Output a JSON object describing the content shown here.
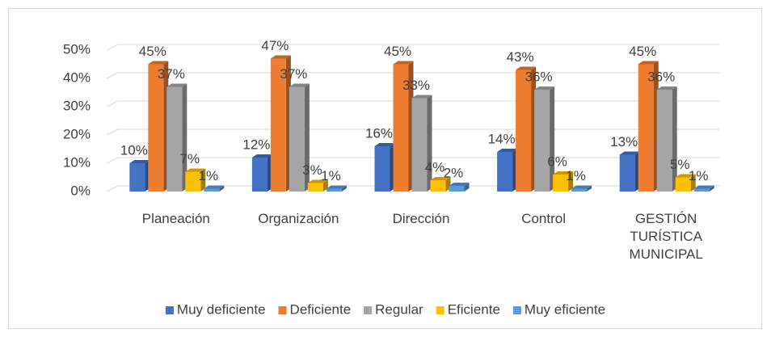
{
  "chart_data": {
    "type": "bar3d",
    "categories": [
      "Planeación",
      "Organización",
      "Dirección",
      "Control",
      "GESTIÓN TURÍSTICA MUNICIPAL"
    ],
    "series": [
      {
        "name": "Muy deficiente",
        "color": "#4472c4",
        "values": [
          10,
          12,
          16,
          14,
          13
        ],
        "value_labels": [
          "10%",
          "12%",
          "16%",
          "14%",
          "13%"
        ]
      },
      {
        "name": "Deficiente",
        "color": "#ed7d31",
        "values": [
          45,
          47,
          45,
          43,
          45
        ],
        "value_labels": [
          "45%",
          "47%",
          "45%",
          "43%",
          "45%"
        ]
      },
      {
        "name": "Regular",
        "color": "#a5a5a5",
        "values": [
          37,
          37,
          33,
          36,
          36
        ],
        "value_labels": [
          "37%",
          "37%",
          "33%",
          "36%",
          "36%"
        ]
      },
      {
        "name": "Eficiente",
        "color": "#ffc000",
        "values": [
          7,
          3,
          4,
          6,
          5
        ],
        "value_labels": [
          "7%",
          "3%",
          "4%",
          "6%",
          "5%"
        ]
      },
      {
        "name": "Muy eficiente",
        "color": "#5b9bd5",
        "values": [
          1,
          1,
          2,
          1,
          1
        ],
        "value_labels": [
          "1%",
          "1%",
          "2%",
          "1%",
          "1%"
        ]
      }
    ],
    "ylim": [
      0,
      50
    ],
    "yticks": [
      {
        "value": 0,
        "label": "0%"
      },
      {
        "value": 10,
        "label": "10%"
      },
      {
        "value": 20,
        "label": "20%"
      },
      {
        "value": 30,
        "label": "30%"
      },
      {
        "value": 40,
        "label": "40%"
      },
      {
        "value": 50,
        "label": "50%"
      }
    ],
    "grid": true,
    "legend": "bottom"
  }
}
